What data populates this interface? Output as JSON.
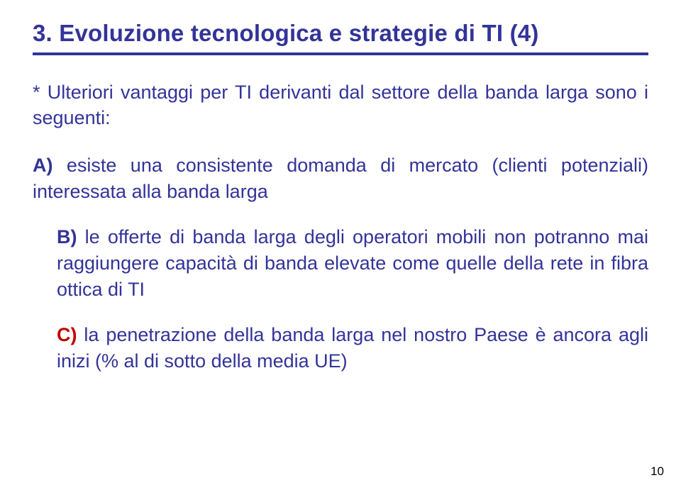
{
  "title": "3. Evoluzione tecnologica e strategie di TI (4)",
  "title_color": "#333399",
  "rule_color": "#333399",
  "intro": "* Ulteriori vantaggi per TI derivanti dal settore della banda larga sono i seguenti:",
  "items": [
    {
      "label": "A)",
      "text": " esiste una consistente domanda di mercato (clienti potenziali) interessata alla banda larga",
      "label_color": "#333399",
      "text_color": "#333399",
      "indent": false
    },
    {
      "label": "B)",
      "text": " le offerte di banda larga degli operatori mobili non potranno mai raggiungere capacità di banda elevate come quelle della rete in fibra ottica di TI",
      "label_color": "#333399",
      "text_color": "#333399",
      "indent": true
    },
    {
      "label": "C)",
      "text": " la penetrazione della banda larga nel nostro Paese è ancora agli inizi (% al di sotto della media UE)",
      "label_color": "#c00000",
      "text_color": "#333399",
      "indent": true
    }
  ],
  "page_number": "10",
  "background_color": "#ffffff",
  "font_family": "Comic Sans MS"
}
